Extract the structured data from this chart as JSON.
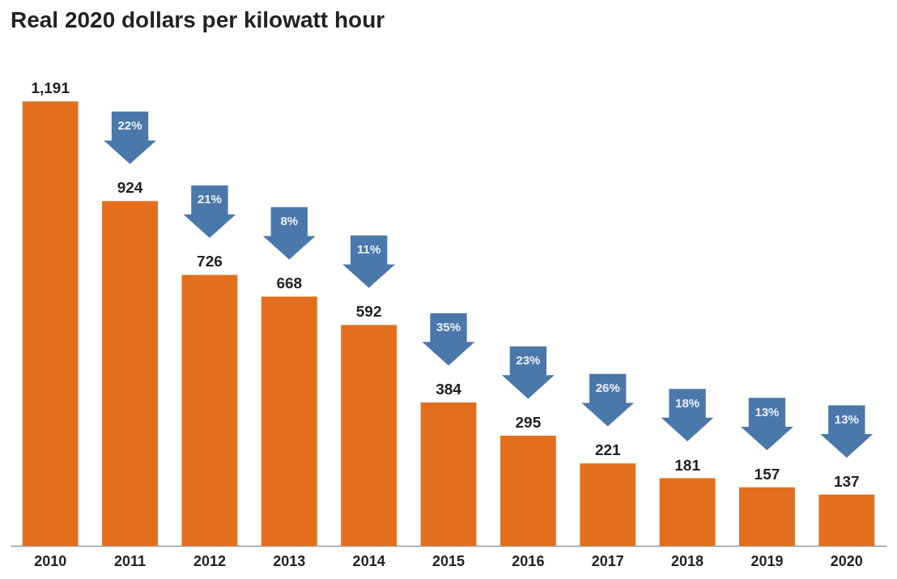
{
  "chart_data": {
    "type": "bar",
    "title": "Real 2020 dollars per kilowatt hour",
    "categories": [
      "2010",
      "2011",
      "2012",
      "2013",
      "2014",
      "2015",
      "2016",
      "2017",
      "2018",
      "2019",
      "2020"
    ],
    "values": [
      1191,
      924,
      726,
      668,
      592,
      384,
      295,
      221,
      181,
      157,
      137
    ],
    "value_labels": [
      "1,191",
      "924",
      "726",
      "668",
      "592",
      "384",
      "295",
      "221",
      "181",
      "157",
      "137"
    ],
    "color": "#e36f1e",
    "annotations": [
      "22%",
      "21%",
      "8%",
      "11%",
      "35%",
      "23%",
      "26%",
      "18%",
      "13%",
      "13%"
    ]
  }
}
